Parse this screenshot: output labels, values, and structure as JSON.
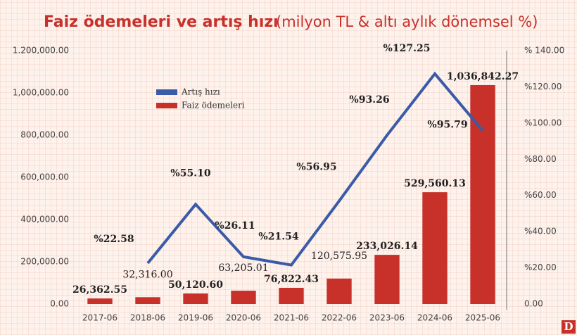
{
  "chart_data": {
    "type": "bar-line",
    "title": "Faiz ödemeleri ve artış hızı",
    "subtitle": "(milyon TL & altı aylık dönemsel %)",
    "logo": "D",
    "categories": [
      "2017-06",
      "2018-06",
      "2019-06",
      "2020-06",
      "2021-06",
      "2022-06",
      "2023-06",
      "2024-06",
      "2025-06"
    ],
    "legend": "upper-left",
    "series": [
      {
        "name": "Faiz ödemeleri",
        "color": "#c8302a",
        "type": "bar",
        "values": [
          26362.55,
          32316.0,
          50120.6,
          63205.01,
          76822.43,
          120575.95,
          233026.14,
          529560.13,
          1036842.27
        ],
        "value_labels": [
          "26,362.55",
          "32,316.00",
          "50,120.60",
          "63,205.01",
          "76,822.43",
          "120,575.95",
          "233,026.14",
          "529,560.13",
          "1,036,842.27"
        ]
      },
      {
        "name": "Artış hızı",
        "color": "#3a5ba8",
        "type": "line",
        "axis": "y2",
        "values": [
          null,
          22.58,
          55.1,
          26.11,
          21.54,
          56.95,
          93.26,
          127.25,
          95.79
        ],
        "value_labels": [
          null,
          "%22.58",
          "%55.10",
          "%26.11",
          "%21.54",
          "%56.95",
          "%93.26",
          "%127.25",
          "%95.79"
        ]
      }
    ],
    "ylim": [
      0,
      1200000
    ],
    "yticks": [
      {
        "value": 0,
        "label": "0.00"
      },
      {
        "value": 200000,
        "label": "200,000.00"
      },
      {
        "value": 400000,
        "label": "400,000.00"
      },
      {
        "value": 600000,
        "label": "600,000.00"
      },
      {
        "value": 800000,
        "label": "800,000.00"
      },
      {
        "value": 1000000,
        "label": "1,000,000.00"
      },
      {
        "value": 1200000,
        "label": "1.200,000.00"
      }
    ],
    "y2lim": [
      0,
      140
    ],
    "y2ticks": [
      {
        "value": 0,
        "label": "0.00"
      },
      {
        "value": 20,
        "label": "%20.00"
      },
      {
        "value": 40,
        "label": "%40.00"
      },
      {
        "value": 60,
        "label": "%60.00"
      },
      {
        "value": 80,
        "label": "%80.00"
      },
      {
        "value": 100,
        "label": "%100.00"
      },
      {
        "value": 120,
        "label": "%120.00"
      },
      {
        "value": 140,
        "label": "% 140.00"
      }
    ]
  }
}
